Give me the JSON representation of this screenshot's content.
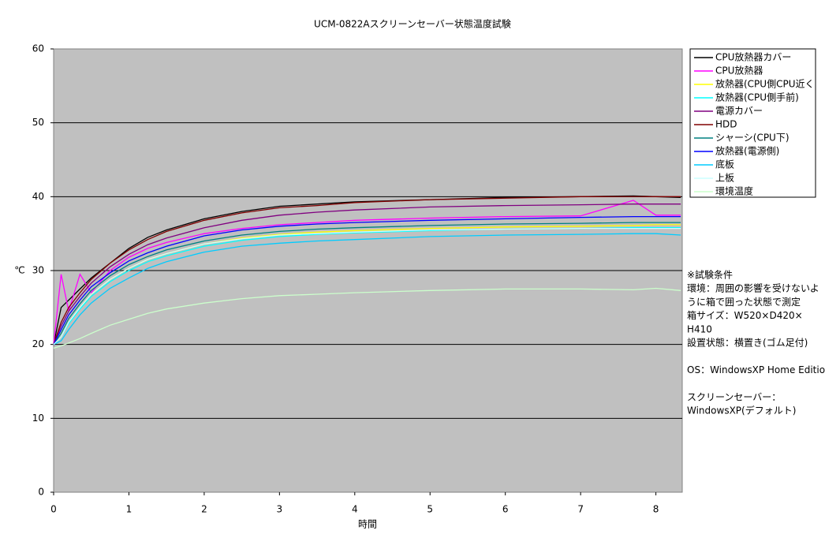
{
  "chart_data": {
    "type": "line",
    "title": "UCM-0822Aスクリーンセーバー状態温度試験",
    "x_label": "時間",
    "y_label": "℃",
    "x": [
      0,
      0.1,
      0.2,
      0.35,
      0.5,
      0.75,
      1,
      1.25,
      1.5,
      2,
      2.5,
      3,
      3.5,
      4,
      5,
      6,
      7,
      7.7,
      8,
      8.33
    ],
    "xlim": [
      0,
      8.35
    ],
    "xticks": [
      0,
      1,
      2,
      3,
      4,
      5,
      6,
      7,
      8
    ],
    "ylim": [
      0,
      60
    ],
    "yticks": [
      0,
      10,
      20,
      30,
      40,
      50,
      60
    ],
    "grid": true,
    "series": [
      {
        "name": "CPU放熱器カバー",
        "color": "#000000",
        "values": [
          20,
          25,
          26,
          27.5,
          29,
          31,
          33,
          34.5,
          35.5,
          37,
          38,
          38.7,
          39,
          39.3,
          39.6,
          39.9,
          40,
          40.1,
          40,
          39.9
        ]
      },
      {
        "name": "CPU放熱器",
        "color": "#ff00ff",
        "values": [
          20,
          29.5,
          24.5,
          29.5,
          27,
          30,
          31.8,
          33,
          33.8,
          35,
          35.7,
          36.2,
          36.5,
          36.8,
          37.1,
          37.3,
          37.4,
          39.5,
          37.5,
          37.5
        ]
      },
      {
        "name": "放熱器(CPU側CPU近く",
        "color": "#ffff00",
        "values": [
          20,
          21,
          23,
          25,
          26.8,
          28.8,
          30.3,
          31.5,
          32.3,
          33.6,
          34.4,
          34.9,
          35.2,
          35.4,
          35.7,
          35.9,
          36,
          36.1,
          36.2,
          36.2
        ]
      },
      {
        "name": "放熱器(CPU側手前)",
        "color": "#00ffff",
        "values": [
          20,
          21,
          22.8,
          24.8,
          26.5,
          28.5,
          30,
          31.2,
          32,
          33.3,
          34.1,
          34.6,
          34.9,
          35.1,
          35.4,
          35.6,
          35.7,
          35.8,
          35.8,
          35.8
        ]
      },
      {
        "name": "電源カバー",
        "color": "#800080",
        "values": [
          20,
          22.5,
          24.5,
          26.5,
          28.3,
          30.5,
          32.2,
          33.5,
          34.4,
          35.8,
          36.8,
          37.5,
          37.9,
          38.2,
          38.6,
          38.8,
          38.9,
          39,
          39,
          39
        ]
      },
      {
        "name": "HDD",
        "color": "#800000",
        "values": [
          20,
          23,
          25,
          27,
          28.8,
          31,
          32.8,
          34.2,
          35.3,
          36.8,
          37.8,
          38.5,
          38.8,
          39.2,
          39.6,
          39.8,
          40,
          40,
          40,
          40
        ]
      },
      {
        "name": "シャーシ(CPU下)",
        "color": "#008080",
        "values": [
          20,
          21.5,
          23.5,
          25.5,
          27.3,
          29.3,
          30.8,
          31.9,
          32.8,
          34,
          34.8,
          35.3,
          35.6,
          35.8,
          36.1,
          36.3,
          36.4,
          36.5,
          36.5,
          36.5
        ]
      },
      {
        "name": "放熱器(電源側)",
        "color": "#0000ff",
        "values": [
          20,
          22,
          24,
          26,
          27.8,
          29.7,
          31.3,
          32.4,
          33.3,
          34.7,
          35.5,
          36,
          36.3,
          36.5,
          36.8,
          37,
          37.2,
          37.3,
          37.3,
          37.3
        ]
      },
      {
        "name": "底板",
        "color": "#00ccff",
        "values": [
          20,
          20.5,
          22,
          24,
          25.6,
          27.6,
          29,
          30.3,
          31.2,
          32.5,
          33.3,
          33.7,
          34,
          34.2,
          34.6,
          34.8,
          34.9,
          35,
          35,
          34.8
        ]
      },
      {
        "name": "上板",
        "color": "#ccffff",
        "values": [
          20,
          21,
          23,
          25,
          26.8,
          28.8,
          30.3,
          31.5,
          32.3,
          33.6,
          34.3,
          34.8,
          35,
          35.2,
          35.5,
          35.6,
          35.7,
          35.7,
          35.7,
          35.7
        ]
      },
      {
        "name": "環境温度",
        "color": "#ccffcc",
        "values": [
          19.5,
          19.8,
          20.2,
          20.8,
          21.5,
          22.6,
          23.4,
          24.2,
          24.8,
          25.6,
          26.2,
          26.6,
          26.8,
          27,
          27.3,
          27.5,
          27.5,
          27.4,
          27.6,
          27.3
        ]
      }
    ],
    "annotation": [
      "※試験条件",
      "環境：周囲の影響を受けないよ",
      "うに箱で囲った状態で測定",
      "箱サイズ：W520×D420×",
      "H410",
      "設置状態：横置き(ゴム足付)",
      "OS：WindowsXP Home Edition",
      "スクリーンセーバー：",
      " WindowsXP(デフォルト)"
    ]
  }
}
